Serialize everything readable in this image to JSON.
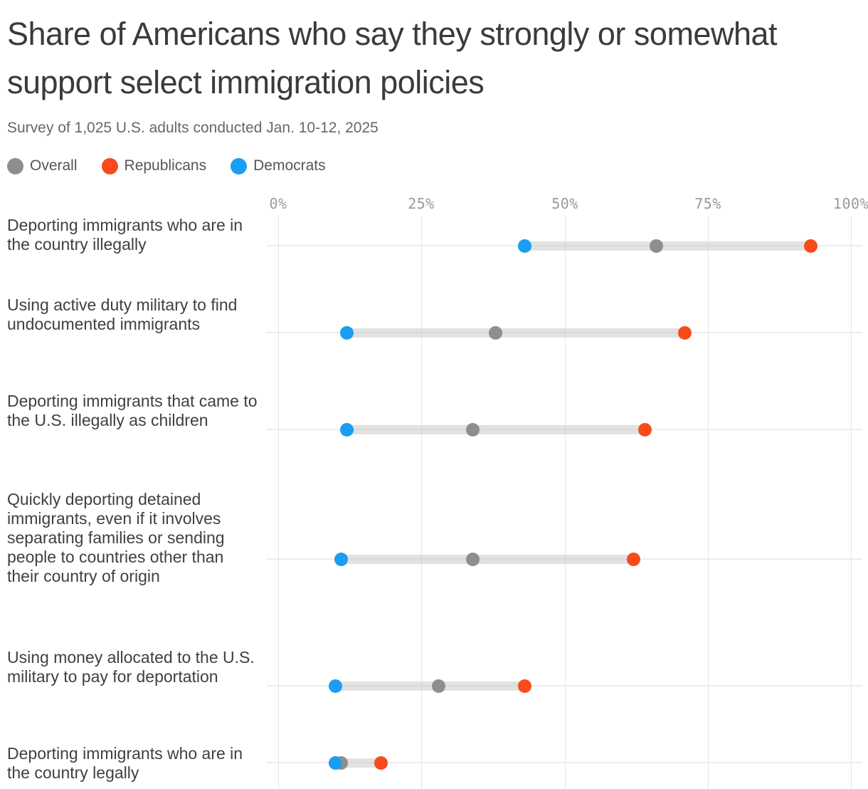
{
  "header": {
    "title": "Share of Americans who say they strongly or somewhat support select immigration policies",
    "subtitle": "Survey of 1,025 U.S. adults conducted Jan. 10-12, 2025"
  },
  "legend": {
    "items": [
      {
        "label": "Overall",
        "color": "#8E8E8E"
      },
      {
        "label": "Republicans",
        "color": "#F84B1C"
      },
      {
        "label": "Democrats",
        "color": "#1B9DF3"
      }
    ]
  },
  "chart_data": {
    "type": "scatter",
    "variant": "dumbbell-dot-plot",
    "title": "Share of Americans who say they strongly or somewhat support select immigration policies",
    "subtitle": "Survey of 1,025 U.S. adults conducted Jan. 10-12, 2025",
    "categories": [
      "Deporting immigrants who are in the country illegally",
      "Using active duty military to find undocumented immigrants",
      "Deporting immigrants that came to the U.S. illegally as children",
      "Quickly deporting detained immigrants, even if it involves separating families or sending people to countries other than their country of origin",
      "Using money allocated to the U.S. military to pay for deportation",
      "Deporting immigrants who are in the country legally"
    ],
    "series": [
      {
        "name": "Overall",
        "color": "#8E8E8E",
        "values": [
          66,
          38,
          34,
          34,
          28,
          11
        ]
      },
      {
        "name": "Republicans",
        "color": "#F84B1C",
        "values": [
          93,
          71,
          64,
          62,
          43,
          18
        ]
      },
      {
        "name": "Democrats",
        "color": "#1B9DF3",
        "values": [
          43,
          12,
          12,
          11,
          10,
          10
        ]
      }
    ],
    "xlabel": "",
    "ylabel": "",
    "xlim": [
      0,
      100
    ],
    "x_ticks": [
      {
        "label": "0%",
        "value": 0
      },
      {
        "label": "25%",
        "value": 25
      },
      {
        "label": "50%",
        "value": 50
      },
      {
        "label": "75%",
        "value": 75
      },
      {
        "label": "100%",
        "value": 100
      }
    ],
    "grid": true,
    "legend_position": "top-left",
    "unit": "%"
  }
}
